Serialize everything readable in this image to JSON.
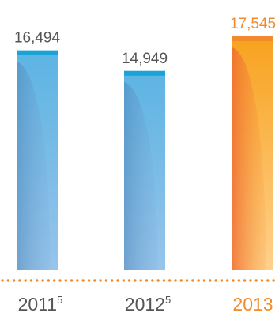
{
  "chart_data": {
    "type": "bar",
    "title": "",
    "xlabel": "",
    "ylabel": "",
    "categories": [
      "2011",
      "2012",
      "2013"
    ],
    "footnotes": [
      "5",
      "5",
      ""
    ],
    "values": [
      16494,
      14949,
      17545
    ],
    "value_labels": [
      "16,494",
      "14,949",
      "17,545"
    ],
    "ylim": [
      0,
      17545
    ],
    "grid": false,
    "legend": "none",
    "colors": {
      "blue_top": "#1aa3d6",
      "blue_light": "#8dbfe6",
      "blue_shadow": "#5d95c6",
      "orange_top": "#f28b2b",
      "orange_light": "#ffd08a",
      "orange_shadow": "#f07a2e",
      "highlight": "#f28b2b",
      "text": "#555555",
      "baseline": "#f28b2b"
    }
  }
}
